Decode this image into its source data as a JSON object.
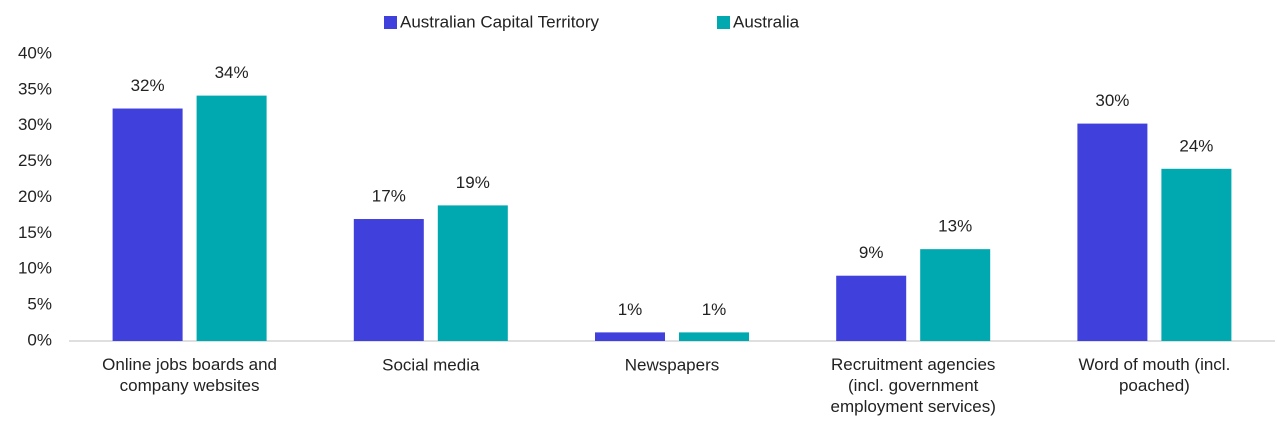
{
  "chart_data": {
    "type": "bar",
    "categories": [
      "Online jobs boards and\ncompany websites",
      "Social media",
      "Newspapers",
      "Recruitment agencies\n(incl. government\nemployment services)",
      "Word of mouth (incl.\npoached)"
    ],
    "series": [
      {
        "name": "Australian Capital Territory",
        "color": "#4040dc",
        "values": [
          32.4,
          17.0,
          1.2,
          9.1,
          30.3
        ],
        "value_labels": [
          "32%",
          "17%",
          "1%",
          "9%",
          "30%"
        ]
      },
      {
        "name": "Australia",
        "color": "#00a8b0",
        "values": [
          34.2,
          18.9,
          1.2,
          12.8,
          24.0
        ],
        "value_labels": [
          "34%",
          "19%",
          "1%",
          "13%",
          "24%"
        ]
      }
    ],
    "ylim": [
      0,
      40
    ],
    "yticks": [
      {
        "value": 0,
        "label": "0%"
      },
      {
        "value": 5,
        "label": "5%"
      },
      {
        "value": 10,
        "label": "10%"
      },
      {
        "value": 15,
        "label": "15%"
      },
      {
        "value": 20,
        "label": "20%"
      },
      {
        "value": 25,
        "label": "25%"
      },
      {
        "value": 30,
        "label": "30%"
      },
      {
        "value": 35,
        "label": "35%"
      },
      {
        "value": 40,
        "label": "40%"
      }
    ],
    "legend": "top"
  }
}
